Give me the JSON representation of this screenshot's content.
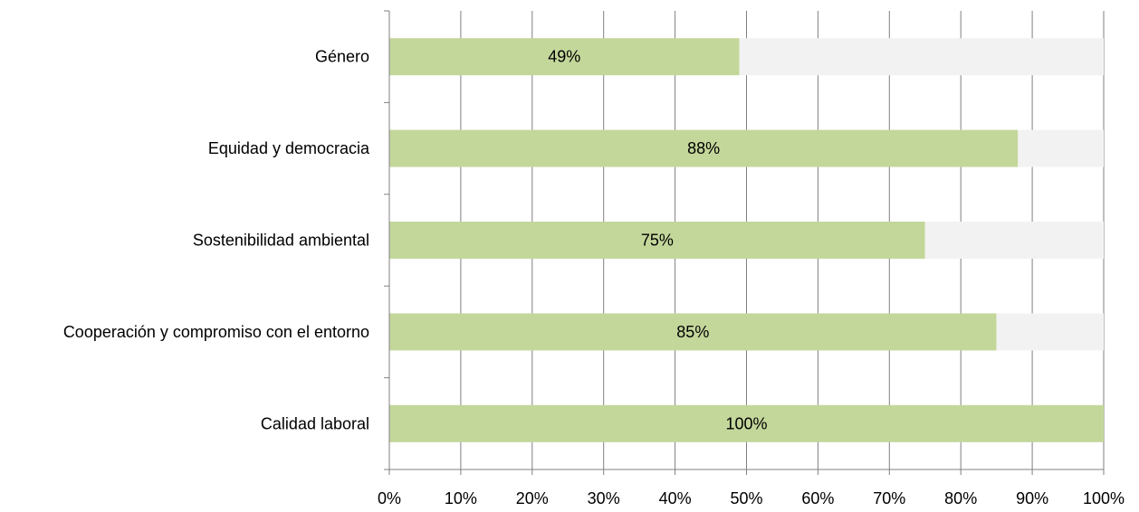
{
  "chart_data": {
    "type": "bar",
    "orientation": "horizontal",
    "stacked": "100%",
    "categories": [
      "Género",
      "Equidad y democracia",
      "Sostenibilidad ambiental",
      "Cooperación y compromiso con el entorno",
      "Calidad laboral"
    ],
    "series": [
      {
        "values": [
          49,
          88,
          75,
          85,
          100
        ],
        "color": "#c4d79b"
      },
      {
        "values": [
          51,
          12,
          25,
          15,
          0
        ],
        "color": "#f2f2f2"
      }
    ],
    "data_labels": [
      "49%",
      "88%",
      "75%",
      "85%",
      "100%"
    ],
    "x_ticks": [
      "0%",
      "10%",
      "20%",
      "30%",
      "40%",
      "50%",
      "60%",
      "70%",
      "80%",
      "90%",
      "100%"
    ],
    "xlim": [
      0,
      100
    ],
    "grid": "vertical",
    "legend": "none"
  }
}
